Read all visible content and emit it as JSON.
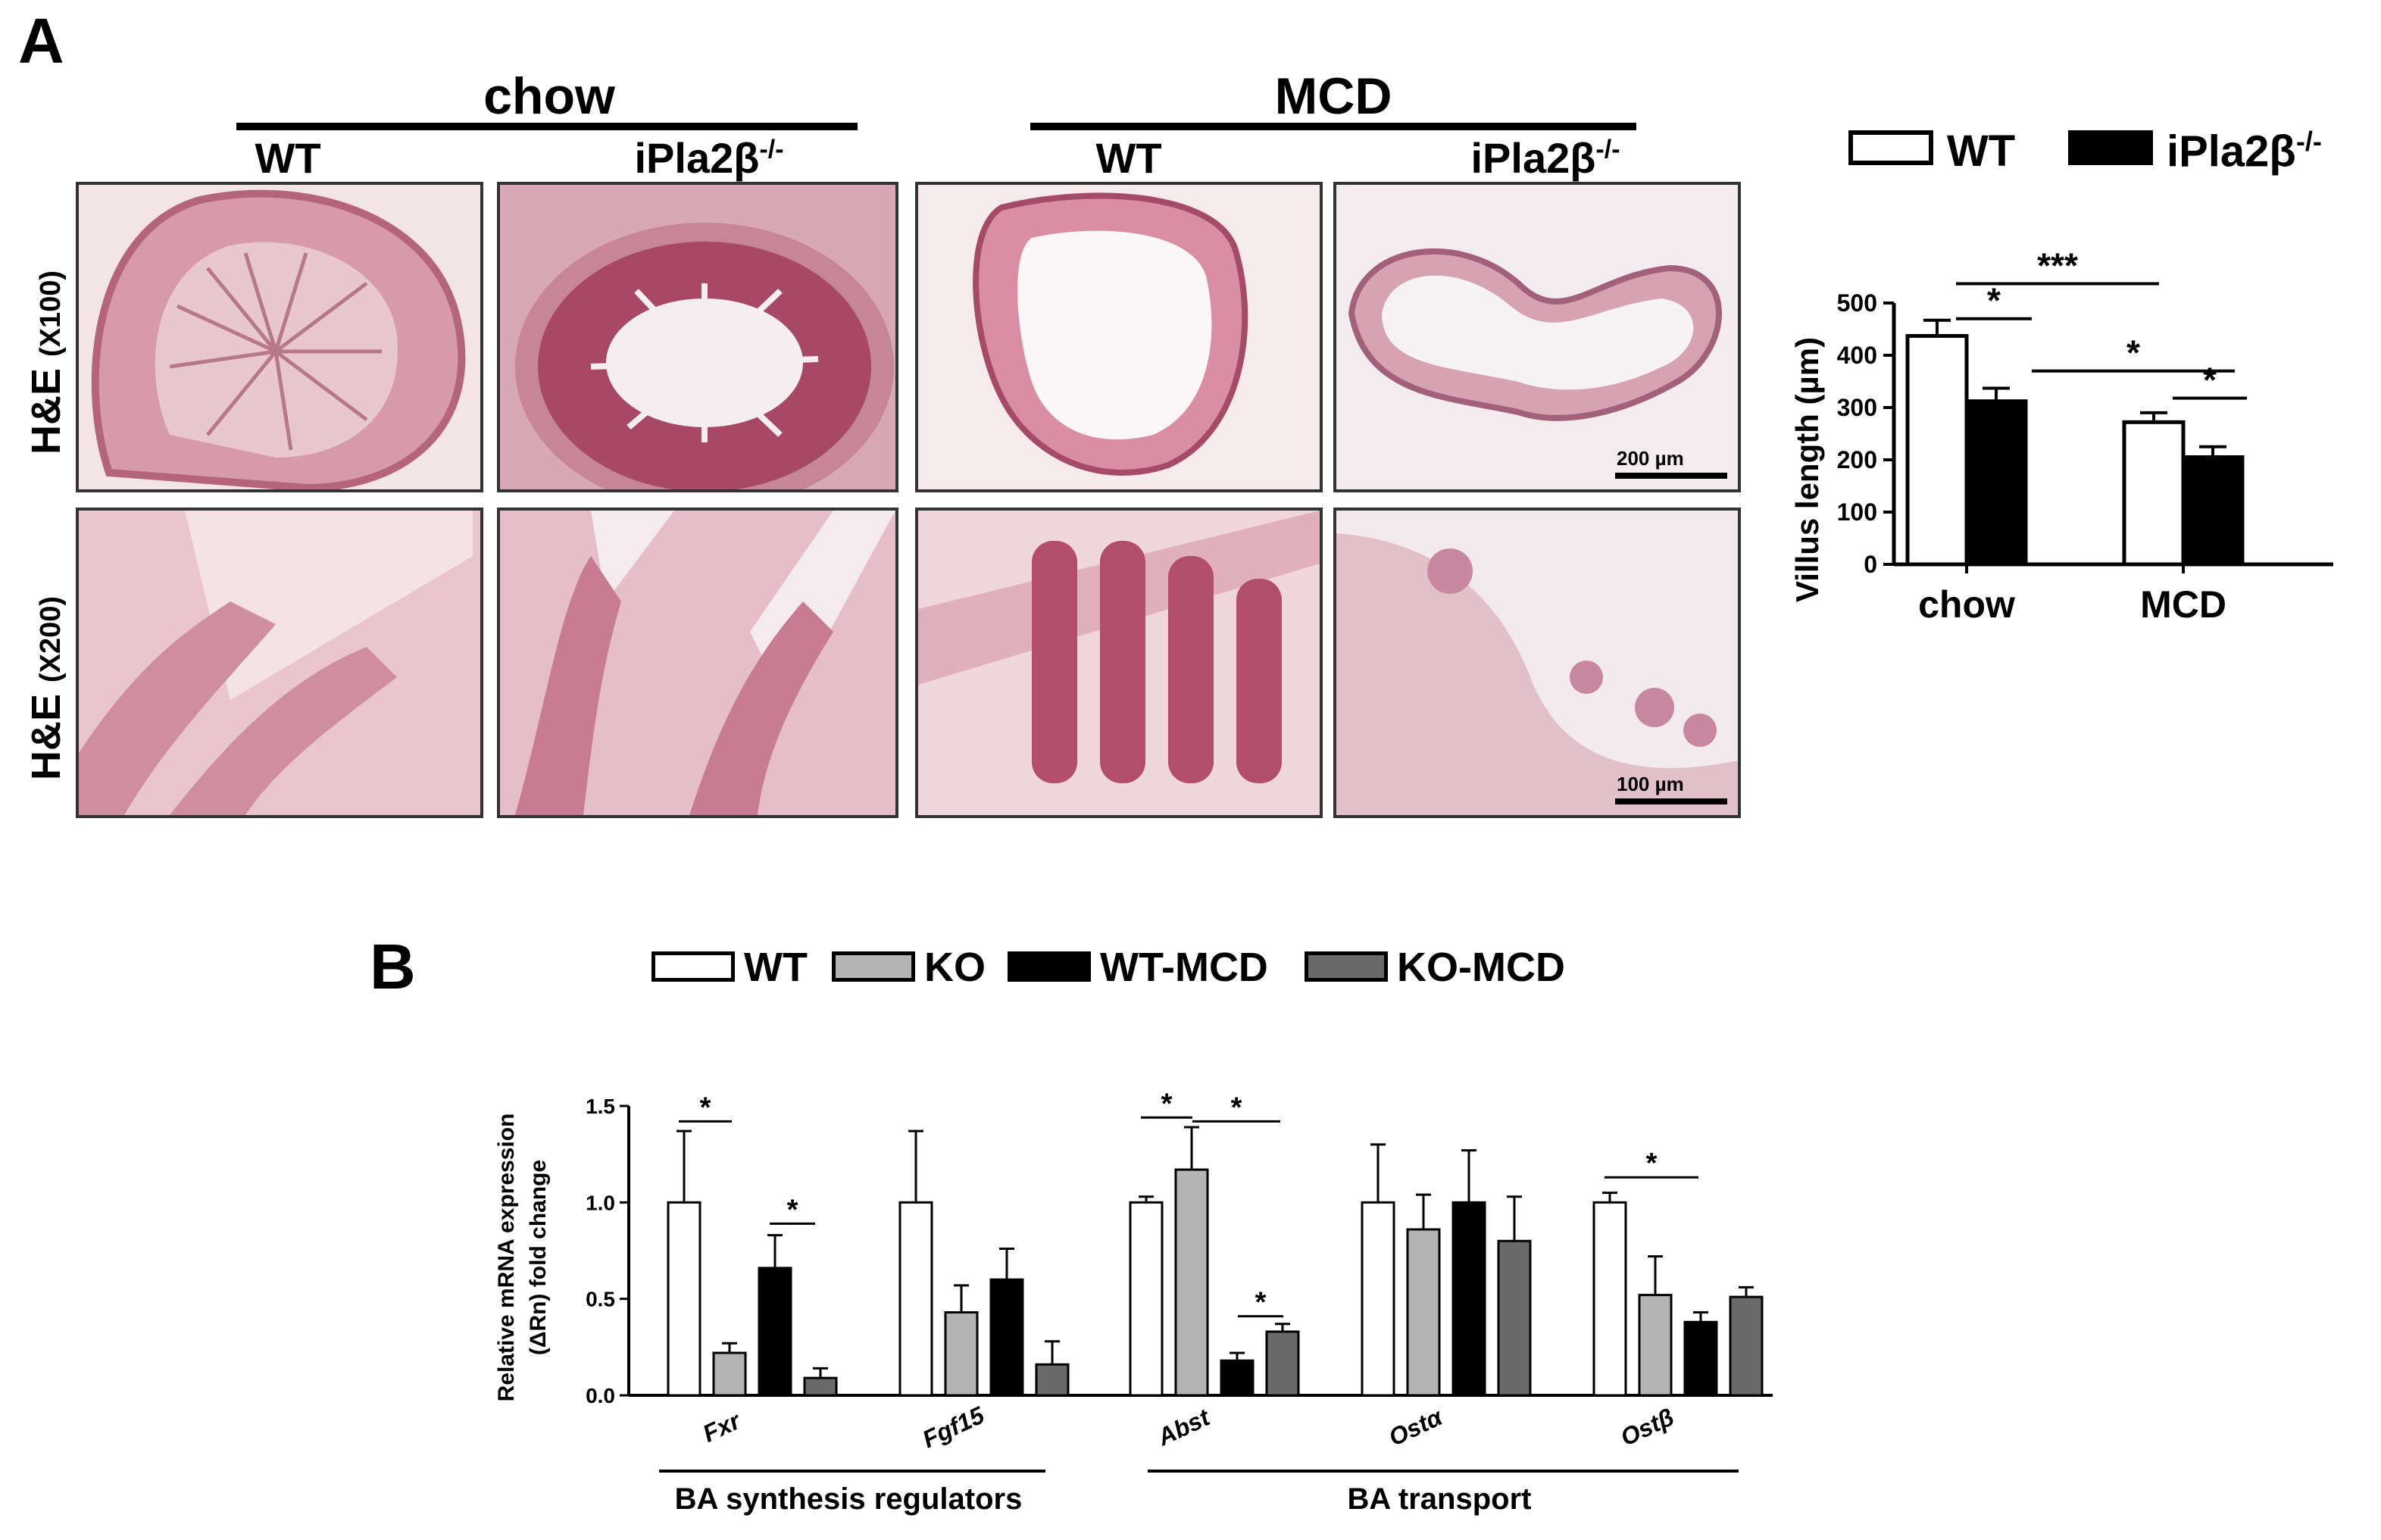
{
  "panel_a": {
    "letter": "A",
    "groups": [
      {
        "label": "chow"
      },
      {
        "label": "MCD"
      }
    ],
    "columns": [
      {
        "label": "WT"
      },
      {
        "label": "iPla2β",
        "sup": "-/-"
      },
      {
        "label": "WT"
      },
      {
        "label": "iPla2β",
        "sup": "-/-"
      }
    ],
    "rows": [
      {
        "label": "H&E",
        "mag": "(X100)",
        "scale": "200 µm"
      },
      {
        "label": "H&E",
        "mag": "(X200)",
        "scale": "100 µm"
      }
    ],
    "legend": [
      {
        "label": "WT",
        "color": "#ffffff"
      },
      {
        "label": "iPla2β",
        "sup": "-/-",
        "color": "#000000"
      }
    ]
  },
  "panel_b": {
    "letter": "B",
    "legend": [
      {
        "label": "WT",
        "color": "#ffffff"
      },
      {
        "label": "KO",
        "color": "#b4b4b4"
      },
      {
        "label": "WT-MCD",
        "color": "#000000"
      },
      {
        "label": "KO-MCD",
        "color": "#6a6a6a"
      }
    ],
    "group_labels": [
      {
        "label": "BA synthesis regulators"
      },
      {
        "label": "BA transport"
      }
    ]
  },
  "chart_data": [
    {
      "type": "bar",
      "ylabel": "Villus length (µm)",
      "categories": [
        "chow",
        "MCD"
      ],
      "ylim": [
        0,
        500
      ],
      "yticks": [
        0,
        100,
        200,
        300,
        400,
        500
      ],
      "series": [
        {
          "name": "WT",
          "values": [
            437,
            272
          ],
          "errors": [
            30,
            18
          ],
          "color": "#ffffff"
        },
        {
          "name": "iPla2β-/-",
          "values": [
            312,
            205
          ],
          "errors": [
            25,
            20
          ],
          "color": "#000000"
        }
      ],
      "significance": [
        "*",
        "***",
        "*",
        "*"
      ]
    },
    {
      "type": "bar",
      "ylabel_lines": [
        "Relative mRNA expression",
        "(ΔRn) fold change"
      ],
      "categories": [
        "Fxr",
        "Fgf15",
        "Abst",
        "Ostα",
        "Ostβ"
      ],
      "ylim": [
        0,
        1.5
      ],
      "yticks": [
        "0.0",
        "0.5",
        "1.0",
        "1.5"
      ],
      "series": [
        {
          "name": "WT",
          "values": [
            1.0,
            1.0,
            1.0,
            1.0,
            1.0
          ],
          "errors": [
            0.37,
            0.37,
            0.03,
            0.3,
            0.05
          ],
          "color": "#ffffff"
        },
        {
          "name": "KO",
          "values": [
            0.22,
            0.43,
            1.17,
            0.86,
            0.52
          ],
          "errors": [
            0.05,
            0.14,
            0.22,
            0.18,
            0.2
          ],
          "color": "#b4b4b4"
        },
        {
          "name": "WT-MCD",
          "values": [
            0.66,
            0.6,
            0.18,
            1.0,
            0.38
          ],
          "errors": [
            0.17,
            0.16,
            0.04,
            0.27,
            0.05
          ],
          "color": "#000000"
        },
        {
          "name": "KO-MCD",
          "values": [
            0.09,
            0.16,
            0.33,
            0.8,
            0.51
          ],
          "errors": [
            0.05,
            0.12,
            0.04,
            0.23,
            0.05
          ],
          "color": "#6a6a6a"
        }
      ],
      "significance": [
        "*",
        "*",
        "*",
        "*",
        "*",
        "*"
      ]
    }
  ]
}
